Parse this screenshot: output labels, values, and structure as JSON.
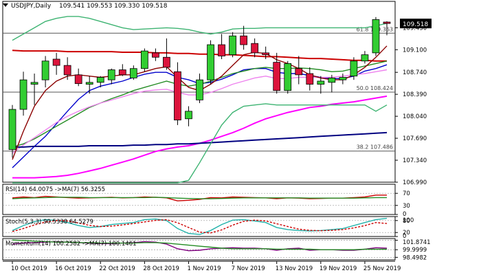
{
  "header": {
    "symbol": "USDJPY,Daily",
    "ohlc": "109.541 109.553 109.330 109.518"
  },
  "chart_data": [
    {
      "type": "candlestick",
      "name": "main",
      "ylim": [
        106.99,
        109.87
      ],
      "y_ticks": [
        "109.450",
        "109.100",
        "108.740",
        "108.390",
        "108.040",
        "107.690",
        "107.340",
        "106.990"
      ],
      "y_tick_values": [
        109.45,
        109.1,
        108.74,
        108.39,
        108.04,
        107.69,
        107.34,
        106.99
      ],
      "last_price_label": "109.518",
      "last_price": 109.518,
      "x_labels": [
        "10 Oct 2019",
        "16 Oct 2019",
        "22 Oct 2019",
        "28 Oct 2019",
        "1 Nov 2019",
        "7 Nov 2019",
        "13 Nov 2019",
        "19 Nov 2019",
        "25 Nov 2019"
      ],
      "x_label_index": [
        0,
        4,
        8,
        12,
        16,
        20,
        24,
        28,
        32
      ],
      "candles": [
        {
          "o": 107.51,
          "h": 108.22,
          "l": 107.38,
          "c": 108.15
        },
        {
          "o": 108.15,
          "h": 108.75,
          "l": 108.05,
          "c": 108.62
        },
        {
          "o": 108.55,
          "h": 108.72,
          "l": 108.22,
          "c": 108.58
        },
        {
          "o": 108.62,
          "h": 109.0,
          "l": 108.5,
          "c": 108.92
        },
        {
          "o": 108.95,
          "h": 109.05,
          "l": 108.7,
          "c": 108.85
        },
        {
          "o": 108.85,
          "h": 108.98,
          "l": 108.62,
          "c": 108.7
        },
        {
          "o": 108.7,
          "h": 108.8,
          "l": 108.52,
          "c": 108.56
        },
        {
          "o": 108.55,
          "h": 108.68,
          "l": 108.4,
          "c": 108.58
        },
        {
          "o": 108.58,
          "h": 108.68,
          "l": 108.5,
          "c": 108.66
        },
        {
          "o": 108.62,
          "h": 108.8,
          "l": 108.55,
          "c": 108.78
        },
        {
          "o": 108.78,
          "h": 108.87,
          "l": 108.68,
          "c": 108.7
        },
        {
          "o": 108.65,
          "h": 108.85,
          "l": 108.62,
          "c": 108.8
        },
        {
          "o": 108.8,
          "h": 109.12,
          "l": 108.75,
          "c": 109.08
        },
        {
          "o": 109.05,
          "h": 109.12,
          "l": 108.92,
          "c": 108.98
        },
        {
          "o": 108.98,
          "h": 109.28,
          "l": 108.78,
          "c": 108.82
        },
        {
          "o": 108.75,
          "h": 108.9,
          "l": 107.9,
          "c": 107.98
        },
        {
          "o": 108.0,
          "h": 108.2,
          "l": 107.88,
          "c": 108.12
        },
        {
          "o": 108.3,
          "h": 108.72,
          "l": 108.25,
          "c": 108.62
        },
        {
          "o": 108.62,
          "h": 109.25,
          "l": 108.55,
          "c": 109.18
        },
        {
          "o": 109.18,
          "h": 109.35,
          "l": 108.95,
          "c": 109.0
        },
        {
          "o": 109.02,
          "h": 109.38,
          "l": 108.98,
          "c": 109.32
        },
        {
          "o": 109.32,
          "h": 109.48,
          "l": 109.1,
          "c": 109.18
        },
        {
          "o": 109.2,
          "h": 109.28,
          "l": 108.98,
          "c": 109.05
        },
        {
          "o": 109.05,
          "h": 109.15,
          "l": 108.95,
          "c": 109.02
        },
        {
          "o": 108.9,
          "h": 109.05,
          "l": 108.4,
          "c": 108.45
        },
        {
          "o": 108.45,
          "h": 108.92,
          "l": 108.4,
          "c": 108.88
        },
        {
          "o": 108.8,
          "h": 109.0,
          "l": 108.55,
          "c": 108.7
        },
        {
          "o": 108.72,
          "h": 108.82,
          "l": 108.45,
          "c": 108.55
        },
        {
          "o": 108.55,
          "h": 108.68,
          "l": 108.4,
          "c": 108.6
        },
        {
          "o": 108.58,
          "h": 108.7,
          "l": 108.42,
          "c": 108.65
        },
        {
          "o": 108.62,
          "h": 108.72,
          "l": 108.55,
          "c": 108.66
        },
        {
          "o": 108.68,
          "h": 108.98,
          "l": 108.62,
          "c": 108.92
        },
        {
          "o": 108.92,
          "h": 109.08,
          "l": 108.88,
          "c": 109.02
        },
        {
          "o": 109.05,
          "h": 109.62,
          "l": 109.0,
          "c": 109.58
        },
        {
          "o": 109.541,
          "h": 109.553,
          "l": 109.33,
          "c": 109.518
        }
      ],
      "fib_levels": [
        {
          "label": "61.8 109.363",
          "value": 109.363
        },
        {
          "label": "50.0 108.424",
          "value": 108.424
        },
        {
          "label": "38.2 107.486",
          "value": 107.486
        }
      ],
      "series": [
        {
          "color": "#cc0000",
          "values": [
            109.09,
            109.08,
            109.08,
            109.08,
            109.08,
            109.07,
            109.07,
            109.07,
            109.07,
            109.07,
            109.06,
            109.06,
            109.06,
            109.05,
            109.05,
            109.04,
            109.04,
            109.03,
            109.03,
            109.02,
            109.02,
            109.01,
            109.0,
            108.99,
            108.99,
            108.98,
            108.97,
            108.96,
            108.96,
            108.95,
            108.94,
            108.93,
            108.93,
            108.92,
            108.92
          ]
        },
        {
          "color": "#0000cc",
          "values": [
            107.22,
            107.39,
            107.56,
            107.72,
            107.92,
            108.12,
            108.31,
            108.45,
            108.52,
            108.56,
            108.6,
            108.66,
            108.71,
            108.74,
            108.74,
            108.66,
            108.62,
            108.56,
            108.58,
            108.63,
            108.7,
            108.78,
            108.8,
            108.8,
            108.74,
            108.72,
            108.72,
            108.69,
            108.66,
            108.64,
            108.64,
            108.68,
            108.76,
            108.8,
            108.86
          ]
        },
        {
          "color": "#228b22",
          "values": [
            107.55,
            107.6,
            107.68,
            107.78,
            107.88,
            107.98,
            108.08,
            108.18,
            108.25,
            108.32,
            108.38,
            108.45,
            108.5,
            108.55,
            108.6,
            108.55,
            108.52,
            108.55,
            108.6,
            108.66,
            108.72,
            108.76,
            108.8,
            108.82,
            108.8,
            108.8,
            108.81,
            108.8,
            108.78,
            108.75,
            108.76,
            108.8,
            108.84,
            108.88,
            108.92
          ]
        },
        {
          "color": "#ff00ff",
          "values": [
            107.06,
            107.06,
            107.06,
            107.07,
            107.08,
            107.1,
            107.13,
            107.17,
            107.21,
            107.26,
            107.31,
            107.36,
            107.42,
            107.48,
            107.52,
            107.55,
            107.57,
            107.61,
            107.66,
            107.72,
            107.78,
            107.85,
            107.93,
            108.0,
            108.05,
            108.1,
            108.14,
            108.18,
            108.2,
            108.23,
            108.25,
            108.27,
            108.3,
            108.33,
            108.36
          ]
        },
        {
          "color": "#ee82ee",
          "values": [
            107.45,
            107.58,
            107.7,
            107.82,
            107.94,
            108.04,
            108.12,
            108.19,
            108.25,
            108.3,
            108.35,
            108.4,
            108.44,
            108.46,
            108.47,
            108.42,
            108.38,
            108.38,
            108.42,
            108.48,
            108.55,
            108.6,
            108.65,
            108.68,
            108.64,
            108.64,
            108.66,
            108.66,
            108.66,
            108.66,
            108.68,
            108.7,
            108.72,
            108.75,
            108.78
          ]
        },
        {
          "color": "#000080",
          "values": [
            107.55,
            107.55,
            107.56,
            107.56,
            107.56,
            107.56,
            107.56,
            107.57,
            107.57,
            107.57,
            107.57,
            107.58,
            107.58,
            107.59,
            107.59,
            107.6,
            107.6,
            107.61,
            107.62,
            107.63,
            107.64,
            107.65,
            107.66,
            107.67,
            107.68,
            107.69,
            107.7,
            107.71,
            107.72,
            107.73,
            107.74,
            107.75,
            107.76,
            107.77,
            107.78
          ]
        },
        {
          "color": "#8b0000",
          "values": [
            107.35,
            107.8,
            108.2,
            108.45,
            108.6,
            108.68,
            108.7,
            108.68,
            108.66,
            108.68,
            108.7,
            108.7,
            108.75,
            108.8,
            108.83,
            108.66,
            108.5,
            108.45,
            108.55,
            108.68,
            108.85,
            109.02,
            109.06,
            109.04,
            108.94,
            108.88,
            108.8,
            108.7,
            108.65,
            108.62,
            108.62,
            108.7,
            108.82,
            108.98,
            109.16
          ]
        },
        {
          "color": "#3cb371",
          "values": [
            109.25,
            109.35,
            109.45,
            109.55,
            109.6,
            109.63,
            109.63,
            109.6,
            109.55,
            109.5,
            109.45,
            109.42,
            109.43,
            109.44,
            109.45,
            109.44,
            109.42,
            109.38,
            109.35,
            109.38,
            109.43,
            109.44,
            109.44,
            109.45,
            109.45,
            109.45,
            109.45,
            109.45,
            109.45,
            109.45,
            109.45,
            109.45,
            109.45,
            109.48,
            109.52
          ]
        },
        {
          "color": "#3cb371",
          "values": [
            106.98,
            106.98,
            106.98,
            106.98,
            106.98,
            106.98,
            106.98,
            106.98,
            106.98,
            106.98,
            106.98,
            106.98,
            106.98,
            106.98,
            106.98,
            106.98,
            107.02,
            107.3,
            107.6,
            107.9,
            108.1,
            108.2,
            108.22,
            108.24,
            108.22,
            108.22,
            108.22,
            108.22,
            108.22,
            108.22,
            108.22,
            108.22,
            108.22,
            108.12,
            108.22
          ]
        }
      ]
    },
    {
      "type": "line",
      "name": "rsi",
      "label": "RSI(14) 64.0075  ->MA(7) 56.3255",
      "ylim": [
        0,
        100
      ],
      "y_ticks": [
        "70",
        "30",
        "0"
      ],
      "y_tick_values": [
        70,
        30,
        0
      ],
      "series": [
        {
          "color": "#cc0000",
          "values": [
            55,
            58,
            56,
            60,
            58,
            56,
            54,
            55,
            56,
            57,
            55,
            56,
            58,
            57,
            55,
            45,
            47,
            50,
            56,
            55,
            58,
            57,
            56,
            55,
            52,
            55,
            54,
            52,
            53,
            54,
            54,
            56,
            58,
            64,
            64
          ]
        },
        {
          "color": "#228b22",
          "values": [
            52,
            54,
            55,
            56,
            57,
            57,
            57,
            56,
            56,
            56,
            56,
            56,
            56,
            57,
            56,
            54,
            53,
            52,
            52,
            53,
            54,
            55,
            55,
            55,
            55,
            55,
            55,
            54,
            54,
            54,
            54,
            54,
            55,
            56,
            56
          ]
        }
      ]
    },
    {
      "type": "line",
      "name": "stochastic",
      "label": "Stoch(5,3,3) 90.5338 64.5279",
      "ylim": [
        0,
        100
      ],
      "y_ticks": [
        "100",
        "80",
        "20",
        "0"
      ],
      "y_tick_values": [
        100,
        80,
        20,
        0
      ],
      "series": [
        {
          "color": "#20b2aa",
          "values": [
            30,
            55,
            75,
            85,
            80,
            70,
            55,
            45,
            50,
            60,
            65,
            70,
            85,
            88,
            80,
            40,
            15,
            10,
            30,
            60,
            82,
            85,
            78,
            70,
            45,
            35,
            30,
            28,
            30,
            35,
            40,
            55,
            70,
            85,
            91
          ]
        },
        {
          "color": "#cc0000",
          "values": [
            25,
            40,
            58,
            72,
            80,
            78,
            68,
            56,
            50,
            52,
            58,
            65,
            73,
            81,
            84,
            69,
            45,
            22,
            18,
            33,
            57,
            76,
            82,
            78,
            64,
            50,
            37,
            31,
            29,
            31,
            35,
            43,
            55,
            70,
            65
          ]
        }
      ]
    },
    {
      "type": "line",
      "name": "momentum",
      "label": "Momentum(14) 100.2582  ->MA(7) 100.1461",
      "ylim": [
        98.0,
        102.2
      ],
      "y_ticks": [
        "101.8741",
        "99.9999",
        "98.4982"
      ],
      "y_tick_values": [
        101.8741,
        99.9999,
        98.4982
      ],
      "series": [
        {
          "color": "#800080",
          "values": [
            101.1,
            101.3,
            101.4,
            101.5,
            101.6,
            101.5,
            101.4,
            101.3,
            101.2,
            101.2,
            101.3,
            101.4,
            101.6,
            101.5,
            101.1,
            100.2,
            99.8,
            99.9,
            100.2,
            100.3,
            100.4,
            100.3,
            100.3,
            100.2,
            99.9,
            100.2,
            100.3,
            99.9,
            100.0,
            100.0,
            99.9,
            99.9,
            100.1,
            100.4,
            100.3
          ]
        },
        {
          "color": "#228b22",
          "values": [
            101.9,
            101.8,
            101.7,
            101.6,
            101.5,
            101.5,
            101.4,
            101.4,
            101.3,
            101.3,
            101.3,
            101.3,
            101.4,
            101.4,
            101.3,
            101.1,
            100.9,
            100.7,
            100.5,
            100.3,
            100.2,
            100.2,
            100.2,
            100.2,
            100.1,
            100.1,
            100.1,
            100.1,
            100.0,
            100.0,
            100.0,
            100.0,
            100.1,
            100.1,
            100.1
          ]
        }
      ]
    }
  ]
}
